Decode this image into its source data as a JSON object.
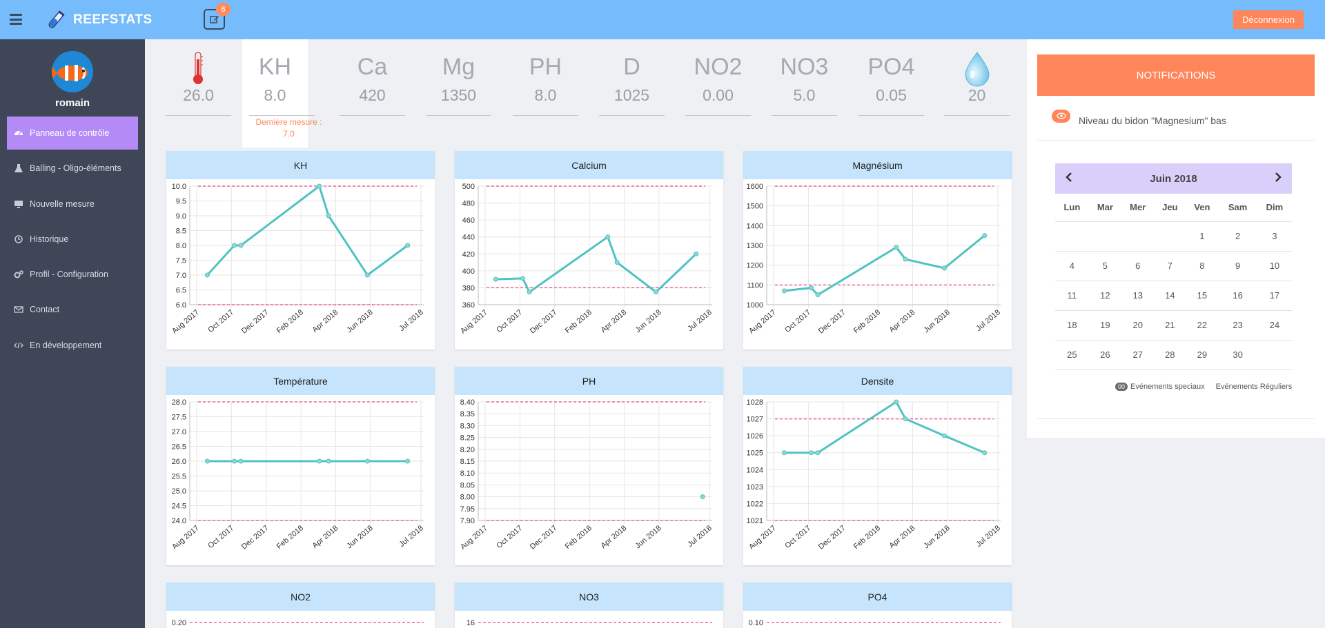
{
  "app": {
    "name": "REEFSTATS",
    "notif_count": "6",
    "logout": "Déconnexion"
  },
  "user": {
    "name": "romain"
  },
  "menu": [
    {
      "label": "Panneau de contrôle",
      "icon": "dashboard-icon",
      "active": true
    },
    {
      "label": "Balling - Oligo-éléments",
      "icon": "flask-icon",
      "active": false
    },
    {
      "label": "Nouvelle mesure",
      "icon": "monitor-icon",
      "active": false
    },
    {
      "label": "Historique",
      "icon": "history-icon",
      "active": false
    },
    {
      "label": "Profil - Configuration",
      "icon": "cogs-icon",
      "active": false
    },
    {
      "label": "Contact",
      "icon": "envelope-icon",
      "active": false
    },
    {
      "label": "En développement",
      "icon": "code-icon",
      "active": false
    }
  ],
  "params": [
    {
      "label": "",
      "icon": "thermometer-icon",
      "value": "26.0"
    },
    {
      "label": "KH",
      "value": "8.0",
      "last": "Dernière mesure : 7.0",
      "active": true
    },
    {
      "label": "Ca",
      "value": "420"
    },
    {
      "label": "Mg",
      "value": "1350"
    },
    {
      "label": "PH",
      "value": "8.0"
    },
    {
      "label": "D",
      "value": "1025"
    },
    {
      "label": "NO2",
      "value": "0.00"
    },
    {
      "label": "NO3",
      "value": "5.0"
    },
    {
      "label": "PO4",
      "value": "0.05"
    },
    {
      "label": "",
      "icon": "water-drop-icon",
      "value": "20"
    }
  ],
  "colors": {
    "accent": "#ff855a",
    "line": "#4fc3c1",
    "limit": "#f06292",
    "header": "#76bbfb",
    "sidebar": "#3e4657",
    "active_menu": "#b48af7"
  },
  "chart_data": [
    {
      "type": "line",
      "title": "KH",
      "x": [
        "2017-08-15",
        "2017-09-25",
        "2017-10-05",
        "2018-02-01",
        "2018-02-15",
        "2018-04-15",
        "2018-06-15"
      ],
      "y": [
        7.0,
        8.0,
        8.0,
        10.0,
        9.0,
        7.0,
        8.0
      ],
      "ylim": [
        6.0,
        10.0
      ],
      "yticks": [
        "10.0",
        "9.5",
        "9.0",
        "8.5",
        "8.0",
        "7.5",
        "7.0",
        "6.5",
        "6.0"
      ],
      "limits": [
        10.0,
        6.0
      ],
      "xticks": [
        "Aug 2017",
        "Oct 2017",
        "Dec 2017",
        "Feb 2018",
        "Apr 2018",
        "Jun 2018",
        "Jul 2018"
      ]
    },
    {
      "type": "line",
      "title": "Calcium",
      "x": [
        "2017-08-15",
        "2017-09-25",
        "2017-10-05",
        "2018-02-01",
        "2018-02-15",
        "2018-04-15",
        "2018-06-15"
      ],
      "y": [
        390,
        391,
        375,
        440,
        410,
        375,
        420
      ],
      "ylim": [
        360,
        500
      ],
      "yticks": [
        "500",
        "480",
        "460",
        "440",
        "420",
        "400",
        "380",
        "360"
      ],
      "limits": [
        500,
        380
      ],
      "xticks": [
        "Aug 2017",
        "Oct 2017",
        "Dec 2017",
        "Feb 2018",
        "Apr 2018",
        "Jun 2018",
        "Jul 2018"
      ]
    },
    {
      "type": "line",
      "title": "Magnésium",
      "x": [
        "2017-08-15",
        "2017-09-25",
        "2017-10-05",
        "2018-02-01",
        "2018-02-15",
        "2018-04-15",
        "2018-06-15"
      ],
      "y": [
        1070,
        1085,
        1050,
        1290,
        1230,
        1185,
        1350
      ],
      "ylim": [
        1000,
        1600
      ],
      "yticks": [
        "1600",
        "1500",
        "1400",
        "1300",
        "1200",
        "1100",
        "1000"
      ],
      "limits": [
        1600,
        1100
      ],
      "xticks": [
        "Aug 2017",
        "Oct 2017",
        "Dec 2017",
        "Feb 2018",
        "Apr 2018",
        "Jun 2018",
        "Jul 2018"
      ]
    },
    {
      "type": "line",
      "title": "Température",
      "x": [
        "2017-08-15",
        "2017-09-25",
        "2017-10-05",
        "2018-02-01",
        "2018-02-15",
        "2018-04-15",
        "2018-06-15"
      ],
      "y": [
        26.0,
        26.0,
        26.0,
        26.0,
        26.0,
        26.0,
        26.0
      ],
      "ylim": [
        24.0,
        28.0
      ],
      "yticks": [
        "28.0",
        "27.5",
        "27.0",
        "26.5",
        "26.0",
        "25.5",
        "25.0",
        "24.5",
        "24.0"
      ],
      "limits": [
        28.0,
        24.0
      ],
      "xticks": [
        "Aug 2017",
        "Oct 2017",
        "Dec 2017",
        "Feb 2018",
        "Apr 2018",
        "Jun 2018",
        "Jul 2018"
      ]
    },
    {
      "type": "line",
      "title": "PH",
      "x": [
        "2018-06-25"
      ],
      "y": [
        8.0
      ],
      "ylim": [
        7.9,
        8.4
      ],
      "yticks": [
        "8.40",
        "8.35",
        "8.30",
        "8.25",
        "8.20",
        "8.15",
        "8.10",
        "8.05",
        "8.00",
        "7.95",
        "7.90"
      ],
      "limits": [
        8.4,
        7.9
      ],
      "xticks": [
        "Aug 2017",
        "Oct 2017",
        "Dec 2017",
        "Feb 2018",
        "Apr 2018",
        "Jun 2018",
        "Jul 2018"
      ]
    },
    {
      "type": "line",
      "title": "Densite",
      "x": [
        "2017-08-15",
        "2017-09-25",
        "2017-10-05",
        "2018-02-01",
        "2018-02-15",
        "2018-04-15",
        "2018-06-15"
      ],
      "y": [
        1025,
        1025,
        1025,
        1028,
        1027,
        1026,
        1025
      ],
      "ylim": [
        1021,
        1028
      ],
      "yticks": [
        "1028",
        "1027",
        "1026",
        "1025",
        "1024",
        "1023",
        "1022",
        "1021"
      ],
      "limits": [
        1027,
        1021
      ],
      "xticks": [
        "Aug 2017",
        "Oct 2017",
        "Dec 2017",
        "Feb 2018",
        "Apr 2018",
        "Jun 2018",
        "Jul 2018"
      ]
    },
    {
      "type": "line",
      "title": "NO2",
      "x": [],
      "y": [],
      "yticks": [
        "0.20"
      ],
      "limits": [
        0.2
      ],
      "xticks": []
    },
    {
      "type": "line",
      "title": "NO3",
      "x": [],
      "y": [],
      "yticks": [
        "16"
      ],
      "limits": [
        16
      ],
      "xticks": []
    },
    {
      "type": "line",
      "title": "PO4",
      "x": [],
      "y": [],
      "yticks": [
        "0.10"
      ],
      "limits": [
        0.1
      ],
      "xticks": []
    }
  ],
  "notifications": {
    "title": "NOTIFICATIONS",
    "items": [
      "Niveau du bidon \"Magnesium\" bas"
    ]
  },
  "calendar": {
    "title": "Juin 2018",
    "days": [
      "Lun",
      "Mar",
      "Mer",
      "Jeu",
      "Ven",
      "Sam",
      "Dim"
    ],
    "weeks": [
      [
        "",
        "",
        "",
        "",
        "1",
        "2",
        "3"
      ],
      [
        "4",
        "5",
        "6",
        "7",
        "8",
        "9",
        "10"
      ],
      [
        "11",
        "12",
        "13",
        "14",
        "15",
        "16",
        "17"
      ],
      [
        "18",
        "19",
        "20",
        "21",
        "22",
        "23",
        "24"
      ],
      [
        "25",
        "26",
        "27",
        "28",
        "29",
        "30",
        ""
      ]
    ],
    "legend": {
      "badge": "00",
      "special": "Evénements speciaux",
      "regular": "Evénements Réguliers"
    }
  }
}
